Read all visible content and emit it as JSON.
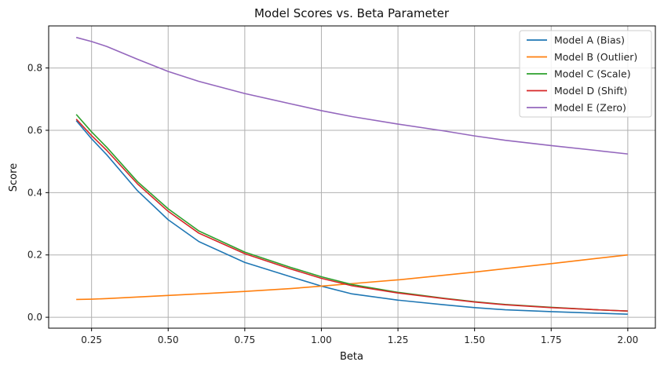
{
  "chart_data": {
    "type": "line",
    "title": "Model Scores vs. Beta Parameter",
    "xlabel": "Beta",
    "ylabel": "Score",
    "xlim": [
      0.11,
      2.09
    ],
    "ylim": [
      -0.035,
      0.935
    ],
    "xticks": [
      0.25,
      0.5,
      0.75,
      1.0,
      1.25,
      1.5,
      1.75,
      2.0
    ],
    "xtick_labels": [
      "0.25",
      "0.50",
      "0.75",
      "1.00",
      "1.25",
      "1.50",
      "1.75",
      "2.00"
    ],
    "yticks": [
      0.0,
      0.2,
      0.4,
      0.6,
      0.8
    ],
    "ytick_labels": [
      "0.0",
      "0.2",
      "0.4",
      "0.6",
      "0.8"
    ],
    "grid": true,
    "legend_position": "top-right",
    "x": [
      0.2,
      0.25,
      0.3,
      0.4,
      0.5,
      0.6,
      0.75,
      0.9,
      1.0,
      1.1,
      1.25,
      1.4,
      1.5,
      1.6,
      1.75,
      1.9,
      2.0
    ],
    "series": [
      {
        "name": "Model A (Bias)",
        "color": "#1f77b4",
        "values": [
          0.631,
          0.573,
          0.521,
          0.406,
          0.313,
          0.243,
          0.176,
          0.13,
          0.1,
          0.075,
          0.055,
          0.04,
          0.031,
          0.024,
          0.018,
          0.013,
          0.01
        ]
      },
      {
        "name": "Model B (Outlier)",
        "color": "#ff7f0e",
        "values": [
          0.057,
          0.058,
          0.06,
          0.065,
          0.07,
          0.075,
          0.083,
          0.092,
          0.1,
          0.108,
          0.12,
          0.135,
          0.145,
          0.156,
          0.172,
          0.189,
          0.2
        ]
      },
      {
        "name": "Model C (Scale)",
        "color": "#2ca02c",
        "values": [
          0.651,
          0.595,
          0.545,
          0.435,
          0.348,
          0.277,
          0.209,
          0.16,
          0.13,
          0.105,
          0.08,
          0.061,
          0.05,
          0.041,
          0.032,
          0.024,
          0.02
        ]
      },
      {
        "name": "Model D (Shift)",
        "color": "#d62728",
        "values": [
          0.636,
          0.583,
          0.535,
          0.428,
          0.34,
          0.27,
          0.204,
          0.155,
          0.125,
          0.101,
          0.078,
          0.06,
          0.049,
          0.04,
          0.031,
          0.024,
          0.02
        ]
      },
      {
        "name": "Model E (Zero)",
        "color": "#9467bd",
        "values": [
          0.898,
          0.885,
          0.869,
          0.828,
          0.789,
          0.757,
          0.718,
          0.685,
          0.663,
          0.644,
          0.62,
          0.598,
          0.582,
          0.568,
          0.551,
          0.535,
          0.524
        ]
      }
    ]
  }
}
